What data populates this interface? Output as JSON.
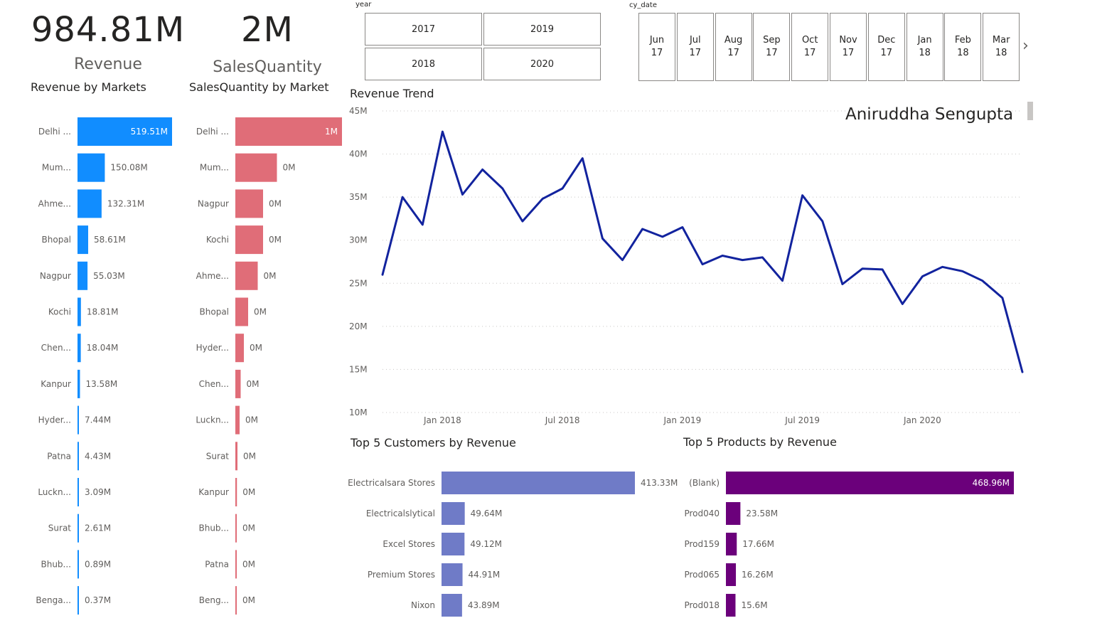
{
  "kpis": {
    "revenue": {
      "value": "984.81M",
      "label": "Revenue"
    },
    "sales_quantity": {
      "value": "2M",
      "label": "SalesQuantity"
    }
  },
  "year_slicer": {
    "caption": "year",
    "options": [
      "2017",
      "2019",
      "2018",
      "2020"
    ]
  },
  "date_slicer": {
    "caption": "cy_date",
    "months": [
      {
        "month": "Jun",
        "year": "17"
      },
      {
        "month": "Jul",
        "year": "17"
      },
      {
        "month": "Aug",
        "year": "17"
      },
      {
        "month": "Sep",
        "year": "17"
      },
      {
        "month": "Oct",
        "year": "17"
      },
      {
        "month": "Nov",
        "year": "17"
      },
      {
        "month": "Dec",
        "year": "17"
      },
      {
        "month": "Jan",
        "year": "18"
      },
      {
        "month": "Feb",
        "year": "18"
      },
      {
        "month": "Mar",
        "year": "18"
      }
    ],
    "next_icon": "chevron-right-icon"
  },
  "author": "Aniruddha Sengupta",
  "colors": {
    "revenue_bar": "#118dff",
    "quantity_bar": "#e06d78",
    "trend_line": "#12239e",
    "customer_bar": "#6f7bc7",
    "product_bar": "#6b007b"
  },
  "chart_data": [
    {
      "type": "bar",
      "orientation": "horizontal",
      "title": "Revenue by Markets",
      "categories": [
        "Delhi ...",
        "Mum...",
        "Ahme...",
        "Bhopal",
        "Nagpur",
        "Kochi",
        "Chen...",
        "Kanpur",
        "Hyder...",
        "Patna",
        "Luckn...",
        "Surat",
        "Bhub...",
        "Benga..."
      ],
      "values": [
        519.51,
        150.08,
        132.31,
        58.61,
        55.03,
        18.81,
        18.04,
        13.58,
        7.44,
        4.43,
        3.09,
        2.61,
        0.89,
        0.37
      ],
      "labels": [
        "519.51M",
        "150.08M",
        "132.31M",
        "58.61M",
        "55.03M",
        "18.81M",
        "18.04M",
        "13.58M",
        "7.44M",
        "4.43M",
        "3.09M",
        "2.61M",
        "0.89M",
        "0.37M"
      ],
      "unit": "M"
    },
    {
      "type": "bar",
      "orientation": "horizontal",
      "title": "SalesQuantity by Market",
      "categories": [
        "Delhi ...",
        "Mum...",
        "Nagpur",
        "Kochi",
        "Ahme...",
        "Bhopal",
        "Hyder...",
        "Chen...",
        "Luckn...",
        "Surat",
        "Kanpur",
        "Bhub...",
        "Patna",
        "Beng..."
      ],
      "values": [
        1.0,
        0.39,
        0.26,
        0.26,
        0.21,
        0.12,
        0.08,
        0.05,
        0.04,
        0.02,
        0.015,
        0.012,
        0.01,
        0.008
      ],
      "labels": [
        "1M",
        "0M",
        "0M",
        "0M",
        "0M",
        "0M",
        "0M",
        "0M",
        "0M",
        "0M",
        "0M",
        "0M",
        "0M",
        "0M"
      ],
      "unit": "M"
    },
    {
      "type": "line",
      "title": "Revenue Trend",
      "x": [
        "2017-10",
        "2017-11",
        "2017-12",
        "2018-01",
        "2018-02",
        "2018-03",
        "2018-04",
        "2018-05",
        "2018-06",
        "2018-07",
        "2018-08",
        "2018-09",
        "2018-10",
        "2018-11",
        "2018-12",
        "2019-01",
        "2019-02",
        "2019-03",
        "2019-04",
        "2019-05",
        "2019-06",
        "2019-07",
        "2019-08",
        "2019-09",
        "2019-10",
        "2019-11",
        "2019-12",
        "2020-01",
        "2020-02",
        "2020-03",
        "2020-04",
        "2020-05",
        "2020-06"
      ],
      "y": [
        26.0,
        35.0,
        31.8,
        42.6,
        35.3,
        38.2,
        36.0,
        32.2,
        34.8,
        36.0,
        39.5,
        30.2,
        27.7,
        31.3,
        30.4,
        31.5,
        27.2,
        28.2,
        27.7,
        28.0,
        25.3,
        35.2,
        32.2,
        24.9,
        26.7,
        26.6,
        22.6,
        25.8,
        26.9,
        26.4,
        25.3,
        23.3,
        14.7
      ],
      "y_unit": "M",
      "ylim": [
        10,
        45
      ],
      "y_ticks": [
        "10M",
        "15M",
        "20M",
        "25M",
        "30M",
        "35M",
        "40M",
        "45M"
      ],
      "x_ticks": [
        {
          "label": "Jan 2018",
          "at": "2018-01"
        },
        {
          "label": "Jul 2018",
          "at": "2018-07"
        },
        {
          "label": "Jan 2019",
          "at": "2019-01"
        },
        {
          "label": "Jul 2019",
          "at": "2019-07"
        },
        {
          "label": "Jan 2020",
          "at": "2020-01"
        }
      ],
      "grid": true
    },
    {
      "type": "bar",
      "orientation": "horizontal",
      "title": "Top 5 Customers by Revenue",
      "categories": [
        "Electricalsara Stores",
        "Electricalslytical",
        "Excel Stores",
        "Premium Stores",
        "Nixon"
      ],
      "values": [
        413.33,
        49.64,
        49.12,
        44.91,
        43.89
      ],
      "labels": [
        "413.33M",
        "49.64M",
        "49.12M",
        "44.91M",
        "43.89M"
      ],
      "unit": "M"
    },
    {
      "type": "bar",
      "orientation": "horizontal",
      "title": "Top 5 Products by Revenue",
      "categories": [
        "(Blank)",
        "Prod040",
        "Prod159",
        "Prod065",
        "Prod018"
      ],
      "values": [
        468.96,
        23.58,
        17.66,
        16.26,
        15.6
      ],
      "labels": [
        "468.96M",
        "23.58M",
        "17.66M",
        "16.26M",
        "15.6M"
      ],
      "unit": "M"
    }
  ]
}
